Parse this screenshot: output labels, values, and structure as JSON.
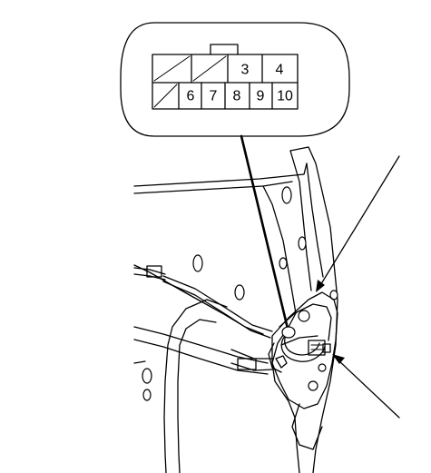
{
  "connector": {
    "pins": [
      {
        "label": "",
        "blank": true
      },
      {
        "label": "",
        "blank": true
      },
      {
        "label": "3"
      },
      {
        "label": "4"
      },
      {
        "label": "",
        "blank": true
      },
      {
        "label": "6"
      },
      {
        "label": "7"
      },
      {
        "label": "8"
      },
      {
        "label": "9"
      },
      {
        "label": "10"
      }
    ]
  }
}
